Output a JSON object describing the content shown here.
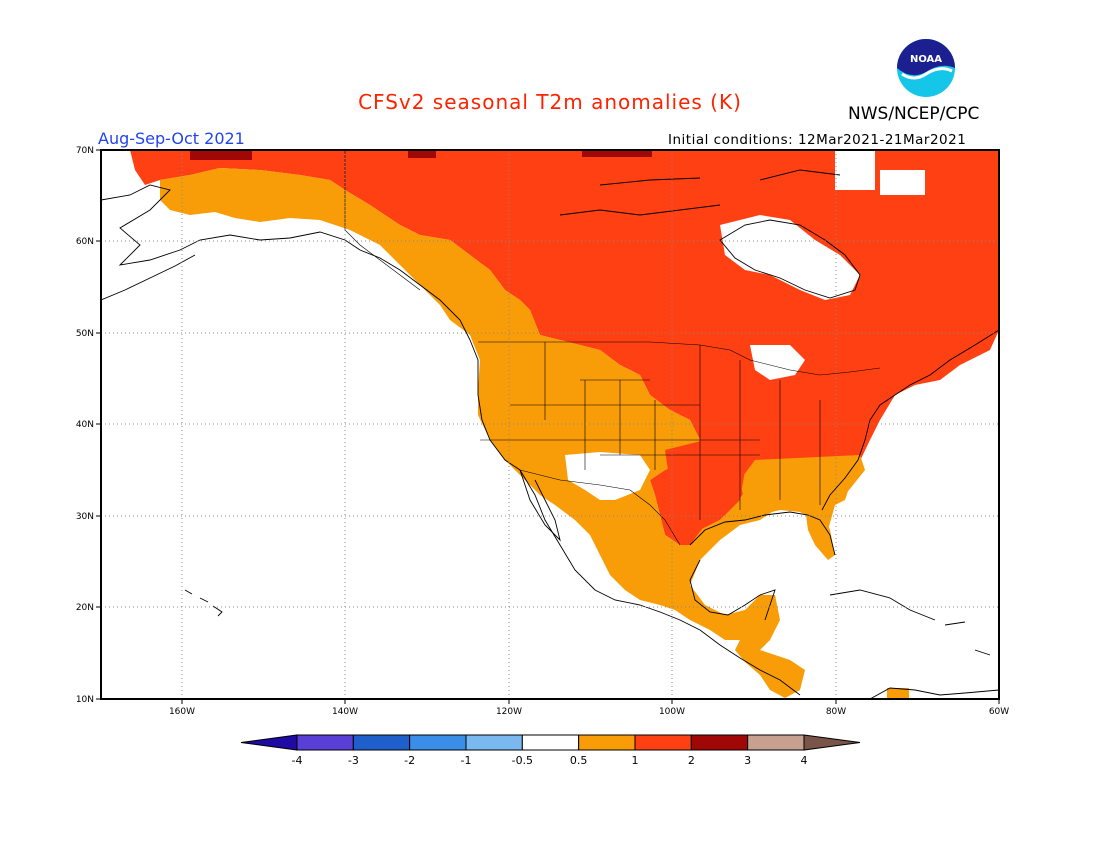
{
  "title": "CFSv2 seasonal T2m anomalies (K)",
  "org": "NWS/NCEP/CPC",
  "logo_text": "NOAA",
  "period": "Aug-Sep-Oct 2021",
  "init_conditions": "Initial conditions: 12Mar2021-21Mar2021",
  "lat_labels": [
    "70N",
    "60N",
    "50N",
    "40N",
    "30N",
    "20N",
    "10N"
  ],
  "lon_labels": [
    "160W",
    "140W",
    "120W",
    "100W",
    "80W",
    "60W"
  ],
  "colorbar": {
    "labels": [
      "-4",
      "-3",
      "-2",
      "-1",
      "-0.5",
      "0.5",
      "1",
      "2",
      "3",
      "4"
    ],
    "colors": [
      "#1f0ba3",
      "#5a3fd6",
      "#1f5fcc",
      "#3a8ee8",
      "#7ab8f0",
      "#ffffff",
      "#f89c08",
      "#ff4012",
      "#a00808",
      "#c8a090",
      "#7a5448"
    ]
  },
  "legend_colors": {
    "0.5-1": "#f89c08",
    "1-2": "#ff4012",
    "2-3": "#a00808"
  }
}
